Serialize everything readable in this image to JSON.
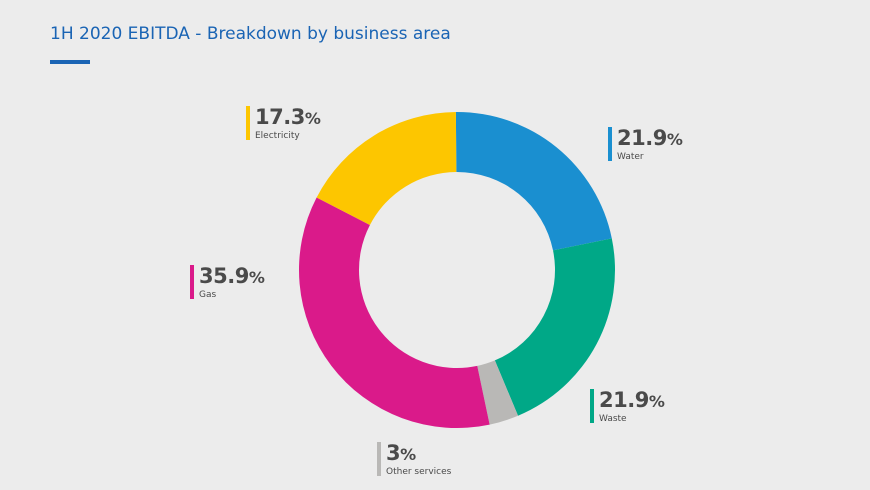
{
  "title": "1H 2020 EBITDA - Breakdown by business area",
  "chart_data": {
    "type": "pie",
    "title": "1H 2020 EBITDA - Breakdown by business area",
    "unit": "%",
    "slices": [
      {
        "name": "Water",
        "value": 21.9,
        "color": "#1a8fd0"
      },
      {
        "name": "Waste",
        "value": 21.9,
        "color": "#00a887"
      },
      {
        "name": "Other services",
        "value": 3.0,
        "color": "#b9b8b6"
      },
      {
        "name": "Gas",
        "value": 35.9,
        "color": "#da1a8a"
      },
      {
        "name": "Electricity",
        "value": 17.3,
        "color": "#fdc600"
      }
    ]
  }
}
